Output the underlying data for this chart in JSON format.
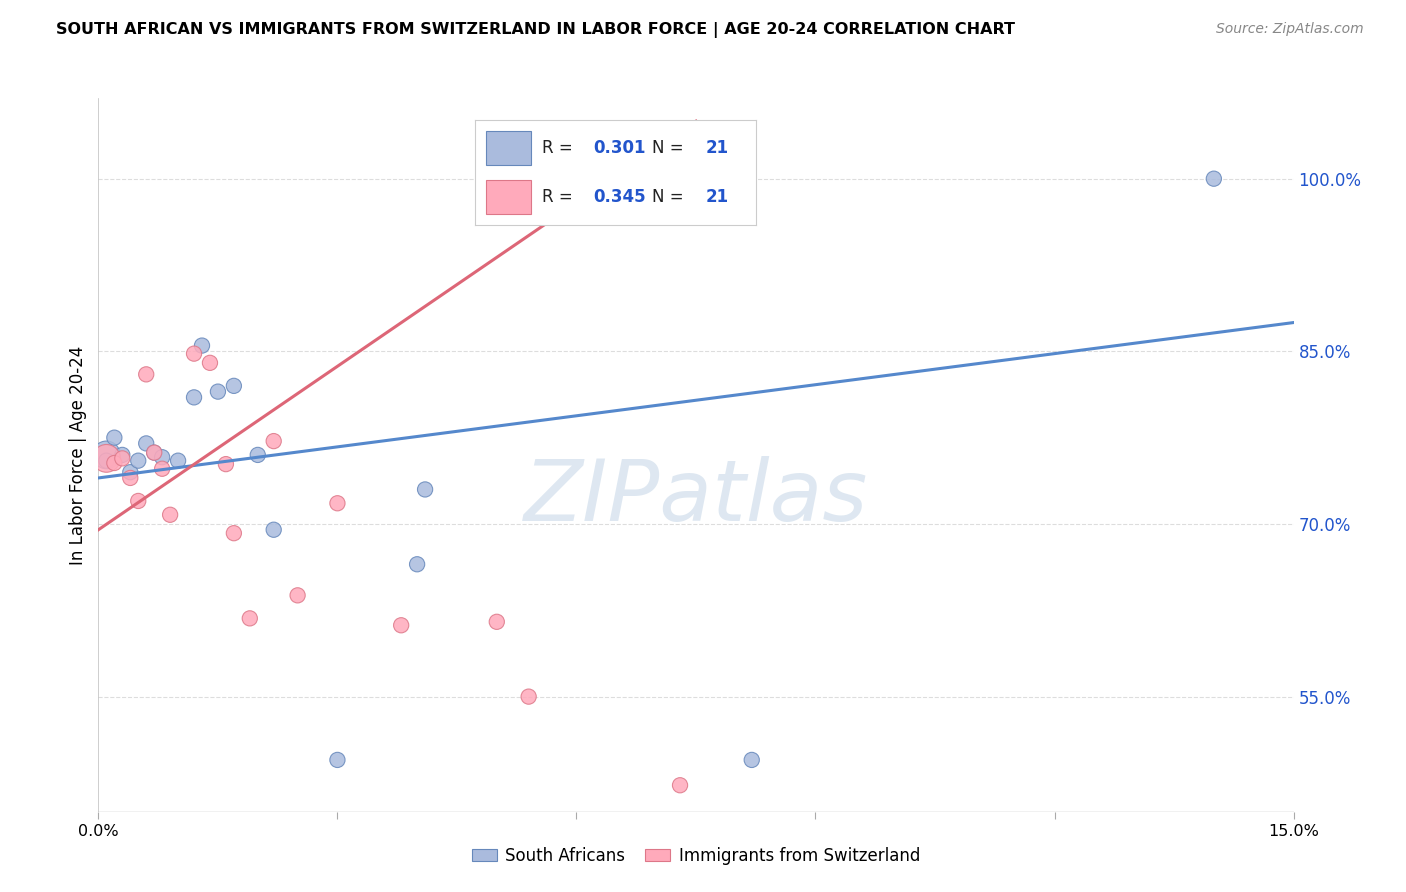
{
  "title": "SOUTH AFRICAN VS IMMIGRANTS FROM SWITZERLAND IN LABOR FORCE | AGE 20-24 CORRELATION CHART",
  "source": "Source: ZipAtlas.com",
  "ylabel": "In Labor Force | Age 20-24",
  "xlim": [
    0.0,
    0.15
  ],
  "ylim_display": [
    0.45,
    1.07
  ],
  "x_ticks": [
    0.0,
    0.03,
    0.06,
    0.09,
    0.12,
    0.15
  ],
  "x_tick_labels": [
    "0.0%",
    "",
    "",
    "",
    "",
    "15.0%"
  ],
  "y_tick_labels_right": [
    "55.0%",
    "70.0%",
    "85.0%",
    "100.0%"
  ],
  "y_tick_vals_right": [
    0.55,
    0.7,
    0.85,
    1.0
  ],
  "legend_r1": "0.301",
  "legend_n1": "21",
  "legend_r2": "0.345",
  "legend_n2": "21",
  "blue_fill": "#AABBDD",
  "blue_edge": "#6688BB",
  "pink_fill": "#FFAABB",
  "pink_edge": "#DD7788",
  "blue_line": "#5588CC",
  "pink_line": "#DD6677",
  "grid_color": "#DDDDDD",
  "sa_points_x": [
    0.001,
    0.001,
    0.002,
    0.003,
    0.004,
    0.005,
    0.006,
    0.007,
    0.008,
    0.01,
    0.012,
    0.013,
    0.015,
    0.017,
    0.02,
    0.022,
    0.03,
    0.04,
    0.041,
    0.082,
    0.14
  ],
  "sa_points_y": [
    0.76,
    0.755,
    0.775,
    0.76,
    0.745,
    0.755,
    0.77,
    0.762,
    0.758,
    0.755,
    0.81,
    0.855,
    0.815,
    0.82,
    0.76,
    0.695,
    0.495,
    0.665,
    0.73,
    0.495,
    1.0
  ],
  "sa_sizes": [
    400,
    120,
    120,
    120,
    120,
    120,
    120,
    120,
    120,
    120,
    120,
    120,
    120,
    120,
    120,
    120,
    120,
    120,
    120,
    120,
    120
  ],
  "imm_points_x": [
    0.001,
    0.002,
    0.003,
    0.004,
    0.005,
    0.006,
    0.007,
    0.008,
    0.009,
    0.012,
    0.014,
    0.016,
    0.017,
    0.019,
    0.022,
    0.025,
    0.03,
    0.038,
    0.05,
    0.054,
    0.073
  ],
  "imm_points_y": [
    0.757,
    0.753,
    0.757,
    0.74,
    0.72,
    0.83,
    0.762,
    0.748,
    0.708,
    0.848,
    0.84,
    0.752,
    0.692,
    0.618,
    0.772,
    0.638,
    0.718,
    0.612,
    0.615,
    0.55,
    0.473
  ],
  "imm_sizes": [
    400,
    120,
    120,
    120,
    120,
    120,
    120,
    120,
    120,
    120,
    120,
    120,
    120,
    120,
    120,
    120,
    120,
    120,
    120,
    120,
    120
  ],
  "blue_trend_x": [
    0.0,
    0.15
  ],
  "blue_trend_y": [
    0.74,
    0.875
  ],
  "pink_trend_x": [
    0.0,
    0.075
  ],
  "pink_trend_y": [
    0.695,
    1.05
  ],
  "watermark": "ZIPatlas",
  "watermark_color": "#C8D8E8"
}
